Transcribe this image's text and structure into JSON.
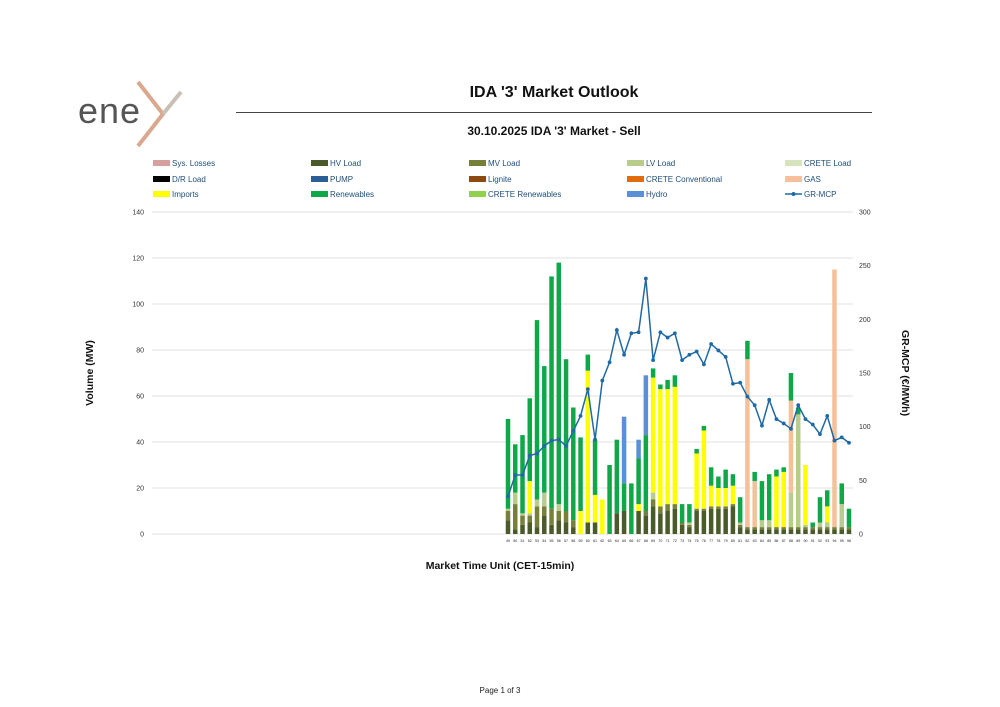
{
  "header": {
    "logo_text": "ene",
    "page_title": "IDA '3' Market Outlook"
  },
  "footer": {
    "page_label": "Page 1 of 3"
  },
  "colors": {
    "Sys. Losses": "#d5a09d",
    "HV Load": "#4a5a2a",
    "MV Load": "#77803a",
    "LV Load": "#b8cc8c",
    "CRETE Load": "#d6e3bc",
    "D/R Load": "#000000",
    "PUMP": "#2b5f96",
    "Lignite": "#8a4a12",
    "CRETE Conventional": "#e36c0a",
    "GAS": "#f5c09a",
    "Imports": "#ffff00",
    "Renewables": "#0fa848",
    "CRETE Renewables": "#92d050",
    "Hydro": "#5b8fd6",
    "GR-MCP": "#1f6aa5"
  },
  "chart_data": {
    "type": "bar",
    "title": "30.10.2025  IDA '3' Market - Sell",
    "xlabel": "Market Time Unit (CET-15min)",
    "ylabel": "Volume (MW)",
    "y2label": "GR-MCP (€/MWh)",
    "ylim": [
      0,
      140
    ],
    "y2lim": [
      0,
      300
    ],
    "yticks": [
      0,
      20,
      40,
      60,
      80,
      100,
      120,
      140
    ],
    "y2ticks": [
      0,
      50,
      100,
      150,
      200,
      250,
      300
    ],
    "stacked": true,
    "grid": true,
    "legend_position": "top",
    "legend": [
      "Sys. Losses",
      "HV Load",
      "MV Load",
      "LV Load",
      "CRETE Load",
      "D/R Load",
      "PUMP",
      "Lignite",
      "CRETE Conventional",
      "GAS",
      "Imports",
      "Renewables",
      "CRETE Renewables",
      "Hydro",
      "GR-MCP"
    ],
    "categories": [
      "49",
      "50",
      "51",
      "52",
      "53",
      "54",
      "55",
      "56",
      "57",
      "58",
      "59",
      "60",
      "61",
      "62",
      "63",
      "64",
      "65",
      "66",
      "67",
      "68",
      "69",
      "70",
      "71",
      "72",
      "73",
      "74",
      "75",
      "76",
      "77",
      "78",
      "79",
      "80",
      "81",
      "82",
      "83",
      "84",
      "85",
      "86",
      "87",
      "88",
      "89",
      "90",
      "91",
      "92",
      "93",
      "94",
      "95",
      "96"
    ],
    "series": [
      {
        "name": "HV Load",
        "values": [
          6,
          2,
          4,
          5,
          3,
          8,
          4,
          6,
          5,
          3,
          0,
          5,
          5,
          0,
          0,
          9,
          10,
          0,
          10,
          8,
          12,
          9,
          10,
          11,
          4,
          3,
          10,
          10,
          11,
          11,
          11,
          12,
          3,
          2,
          2,
          2,
          2,
          2,
          2,
          2,
          2,
          2,
          2,
          2,
          2,
          2,
          2,
          2
        ]
      },
      {
        "name": "MV Load",
        "values": [
          4,
          11,
          4,
          3,
          9,
          4,
          7,
          4,
          5,
          3,
          0,
          0,
          0,
          0,
          0,
          0,
          0,
          0,
          0,
          2,
          3,
          3,
          3,
          2,
          1,
          1,
          1,
          1,
          1,
          1,
          1,
          1,
          1,
          1,
          1,
          1,
          1,
          1,
          1,
          1,
          1,
          1,
          1,
          1,
          1,
          1,
          1,
          1
        ]
      },
      {
        "name": "LV Load",
        "values": [
          1,
          5,
          1,
          1,
          3,
          6,
          0,
          3,
          0,
          0,
          0,
          0,
          0,
          0,
          0,
          0,
          0,
          0,
          0,
          0,
          3,
          0,
          0,
          0,
          0,
          1,
          0,
          0,
          0,
          0,
          0,
          0,
          1,
          0,
          0,
          3,
          3,
          0,
          0,
          15,
          49,
          1,
          0,
          2,
          2,
          0,
          10,
          0
        ]
      },
      {
        "name": "CRETE Load",
        "values": [
          0,
          0,
          0,
          0,
          0,
          0,
          0,
          0,
          0,
          0,
          0,
          0,
          0,
          0,
          0,
          0,
          0,
          0,
          0,
          0,
          0,
          0,
          0,
          0,
          0,
          0,
          0,
          0,
          0,
          0,
          0,
          0,
          0,
          0,
          0,
          0,
          0,
          0,
          0,
          0,
          0,
          0,
          0,
          0,
          0,
          0,
          0,
          0
        ]
      },
      {
        "name": "GAS",
        "values": [
          0,
          0,
          0,
          0,
          0,
          0,
          0,
          0,
          0,
          0,
          0,
          0,
          0,
          0,
          0,
          0,
          0,
          0,
          0,
          0,
          0,
          0,
          0,
          0,
          0,
          0,
          0,
          0,
          0,
          0,
          0,
          0,
          0,
          73,
          20,
          0,
          0,
          0,
          0,
          40,
          0,
          0,
          0,
          0,
          0,
          112,
          0,
          0
        ]
      },
      {
        "name": "Imports",
        "values": [
          0,
          0,
          0,
          14,
          0,
          0,
          0,
          0,
          0,
          0,
          10,
          66,
          12,
          15,
          0,
          0,
          0,
          0,
          3,
          0,
          50,
          51,
          50,
          51,
          0,
          0,
          24,
          34,
          9,
          8,
          8,
          8,
          0,
          0,
          0,
          0,
          0,
          22,
          24,
          0,
          0,
          26,
          0,
          0,
          7,
          0,
          0,
          0
        ]
      },
      {
        "name": "Renewables",
        "values": [
          39,
          21,
          34,
          36,
          78,
          55,
          101,
          105,
          66,
          49,
          32,
          7,
          24,
          0,
          30,
          32,
          12,
          22,
          20,
          33,
          4,
          2,
          4,
          5,
          8,
          8,
          2,
          2,
          8,
          5,
          8,
          5,
          11,
          8,
          4,
          17,
          20,
          3,
          2,
          12,
          3,
          0,
          2,
          11,
          7,
          0,
          9,
          8
        ]
      },
      {
        "name": "Hydro",
        "values": [
          0,
          0,
          0,
          0,
          0,
          0,
          0,
          0,
          0,
          0,
          0,
          0,
          0,
          0,
          0,
          0,
          29,
          0,
          8,
          26,
          0,
          0,
          0,
          0,
          0,
          0,
          0,
          0,
          0,
          0,
          0,
          0,
          0,
          0,
          0,
          0,
          0,
          0,
          0,
          0,
          0,
          0,
          0,
          0,
          0,
          0,
          0,
          0
        ]
      },
      {
        "name": "Lignite",
        "values": [
          0,
          0,
          0,
          0,
          0,
          0,
          0,
          0,
          0,
          0,
          0,
          0,
          0,
          0,
          0,
          0,
          0,
          0,
          0,
          0,
          0,
          0,
          0,
          0,
          0,
          0,
          0,
          0,
          0,
          0,
          0,
          0,
          0,
          0,
          0,
          0,
          0,
          0,
          0,
          0,
          0,
          0,
          0,
          0,
          0,
          0,
          0,
          0
        ]
      },
      {
        "name": "GR-MCP",
        "axis": "y2",
        "type": "line",
        "values": [
          35,
          55,
          55,
          73,
          75,
          82,
          87,
          88,
          82,
          96,
          110,
          135,
          88,
          143,
          160,
          190,
          167,
          187,
          188,
          238,
          162,
          188,
          183,
          187,
          162,
          167,
          170,
          158,
          177,
          171,
          165,
          140,
          141,
          128,
          120,
          101,
          125,
          107,
          103,
          98,
          120,
          107,
          102,
          93,
          110,
          87,
          90,
          85
        ]
      }
    ]
  }
}
